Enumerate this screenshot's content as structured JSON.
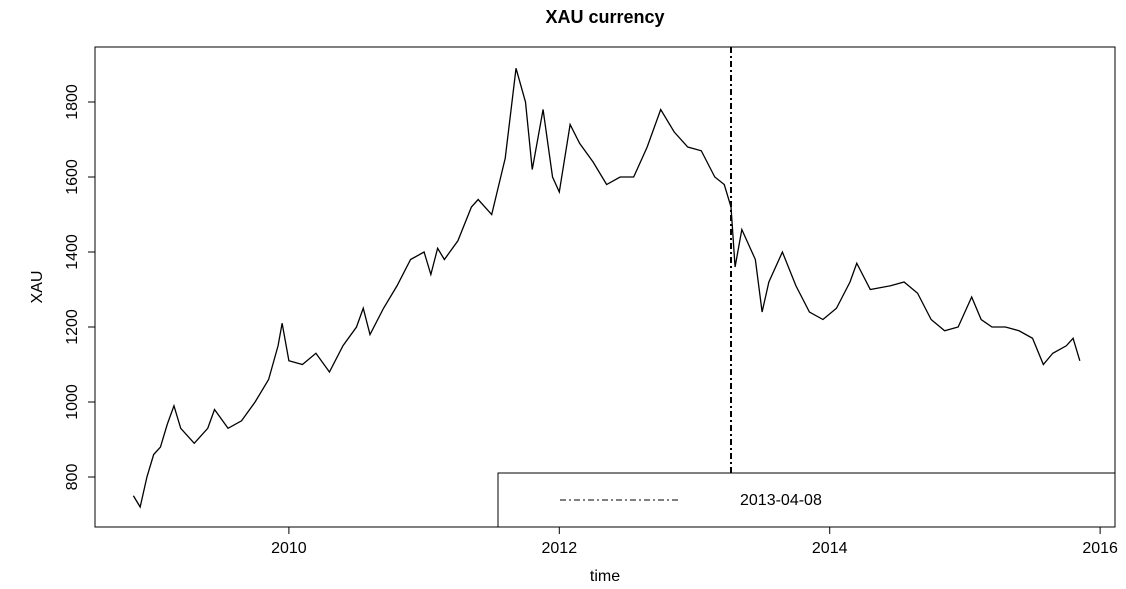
{
  "chart_data": {
    "type": "line",
    "title": "XAU currency",
    "xlabel": "time",
    "ylabel": "XAU",
    "x": [
      2008.85,
      2008.9,
      2008.95,
      2009.0,
      2009.05,
      2009.1,
      2009.15,
      2009.2,
      2009.3,
      2009.4,
      2009.45,
      2009.55,
      2009.65,
      2009.75,
      2009.85,
      2009.92,
      2009.95,
      2010.0,
      2010.1,
      2010.2,
      2010.3,
      2010.4,
      2010.5,
      2010.55,
      2010.6,
      2010.7,
      2010.8,
      2010.9,
      2011.0,
      2011.05,
      2011.1,
      2011.15,
      2011.25,
      2011.35,
      2011.4,
      2011.5,
      2011.6,
      2011.65,
      2011.68,
      2011.75,
      2011.8,
      2011.88,
      2011.95,
      2012.0,
      2012.08,
      2012.15,
      2012.25,
      2012.35,
      2012.45,
      2012.55,
      2012.65,
      2012.75,
      2012.85,
      2012.95,
      2013.05,
      2013.15,
      2013.22,
      2013.27,
      2013.3,
      2013.35,
      2013.45,
      2013.5,
      2013.55,
      2013.65,
      2013.75,
      2013.85,
      2013.95,
      2014.05,
      2014.15,
      2014.2,
      2014.3,
      2014.45,
      2014.55,
      2014.65,
      2014.75,
      2014.85,
      2014.95,
      2015.05,
      2015.12,
      2015.2,
      2015.3,
      2015.4,
      2015.5,
      2015.58,
      2015.65,
      2015.75,
      2015.8,
      2015.85
    ],
    "series": [
      {
        "name": "XAU",
        "color": "#000000",
        "values": [
          750,
          720,
          800,
          860,
          880,
          940,
          990,
          930,
          890,
          930,
          980,
          930,
          950,
          1000,
          1060,
          1150,
          1210,
          1110,
          1100,
          1130,
          1080,
          1150,
          1200,
          1250,
          1180,
          1250,
          1310,
          1380,
          1400,
          1340,
          1410,
          1380,
          1430,
          1520,
          1540,
          1500,
          1650,
          1800,
          1890,
          1800,
          1620,
          1780,
          1600,
          1560,
          1740,
          1690,
          1640,
          1580,
          1600,
          1600,
          1680,
          1780,
          1720,
          1680,
          1670,
          1600,
          1580,
          1520,
          1360,
          1460,
          1380,
          1240,
          1320,
          1400,
          1310,
          1240,
          1220,
          1250,
          1320,
          1370,
          1300,
          1310,
          1320,
          1290,
          1220,
          1190,
          1200,
          1280,
          1220,
          1200,
          1200,
          1190,
          1170,
          1100,
          1130,
          1150,
          1170,
          1110
        ]
      }
    ],
    "vline": {
      "x": 2013.27,
      "label": "2013-04-08"
    },
    "xlim": [
      2008.566,
      2016.11
    ],
    "ylim": [
      666.7,
      1946.7
    ],
    "xticks": [
      2010,
      2012,
      2014,
      2016
    ],
    "yticks": [
      800,
      1000,
      1200,
      1400,
      1600,
      1800
    ]
  }
}
